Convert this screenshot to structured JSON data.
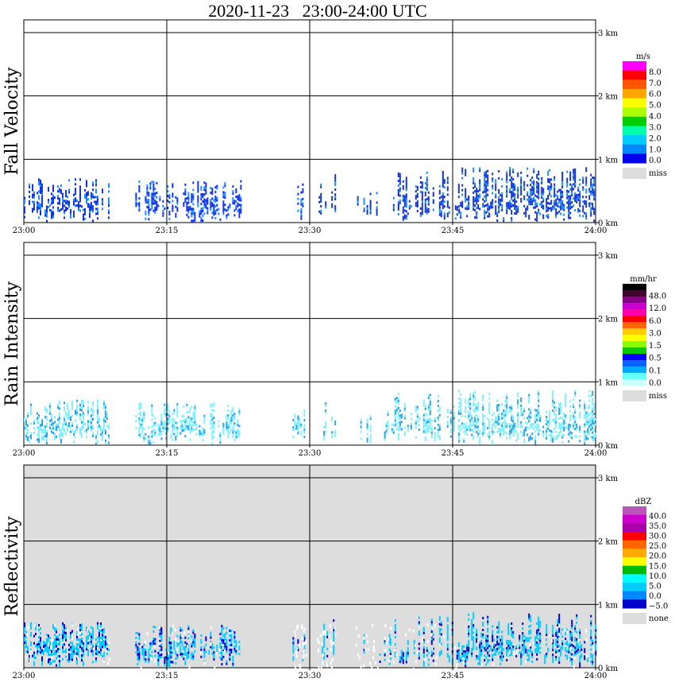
{
  "title": "2020-11-23   23:00-24:00 UTC",
  "x_tick_labels": [
    "23:00",
    "23:15",
    "23:30",
    "23:45",
    "24:00"
  ],
  "height_labels": [
    "3 km",
    "2 km",
    "1 km",
    "0 km"
  ],
  "chart_data": [
    {
      "type": "heatmap",
      "ylabel": "Fall Velocity",
      "xlim": [
        "23:00",
        "24:00"
      ],
      "ylim": [
        0,
        3.2
      ],
      "y_unit": "km",
      "missing_color": "#ffffff",
      "colorbar": {
        "unit": "m/s",
        "labels": [
          "8.0",
          "7.0",
          "6.0",
          "5.0",
          "4.0",
          "3.0",
          "2.0",
          "1.0",
          "0.0"
        ],
        "colors": [
          "#ff00ff",
          "#ff0000",
          "#ff5500",
          "#ffa500",
          "#ffff00",
          "#aaff00",
          "#00cc00",
          "#00ffaa",
          "#00ccff",
          "#0088ff",
          "#0000ee"
        ],
        "missing_label": "miss",
        "missing_swatch": "#dddddd"
      },
      "echo_base_color": "#1030e0",
      "echo_accent_color": "#1a8cff"
    },
    {
      "type": "heatmap",
      "ylabel": "Rain Intensity",
      "xlim": [
        "23:00",
        "24:00"
      ],
      "ylim": [
        0,
        3.2
      ],
      "y_unit": "km",
      "missing_color": "#ffffff",
      "colorbar": {
        "unit": "mm/hr",
        "labels": [
          "48.0",
          "12.0",
          "6.0",
          "3.0",
          "1.5",
          "0.5",
          "0.1",
          "0.0"
        ],
        "colors": [
          "#000000",
          "#440033",
          "#880088",
          "#cc00cc",
          "#ff00aa",
          "#ff0000",
          "#ff6600",
          "#ffcc00",
          "#ffff00",
          "#88ff00",
          "#00cc00",
          "#0000ff",
          "#0066ff",
          "#00aaff",
          "#66ffff",
          "#ccffff"
        ],
        "missing_label": "miss",
        "missing_swatch": "#dddddd"
      },
      "echo_base_color": "#7ff0ff",
      "echo_accent_color": "#2aa0e8"
    },
    {
      "type": "heatmap",
      "ylabel": "Reflectivity",
      "xlim": [
        "23:00",
        "24:00"
      ],
      "ylim": [
        0,
        3.2
      ],
      "y_unit": "km",
      "missing_color": "#dddddd",
      "colorbar": {
        "unit": "dBZ",
        "labels": [
          "40.0",
          "35.0",
          "30.0",
          "25.0",
          "20.0",
          "15.0",
          "10.0",
          "5.0",
          "0.0",
          "−5.0"
        ],
        "colors": [
          "#bb55bb",
          "#cc00cc",
          "#aa00aa",
          "#ff0000",
          "#ff6600",
          "#ffaa00",
          "#ffff00",
          "#00bb00",
          "#00ffff",
          "#00ccff",
          "#0088ff",
          "#0000cc"
        ],
        "missing_label": "none",
        "missing_swatch": "#dddddd"
      },
      "echo_base_color": "#00ccff",
      "echo_accent_color": "#0000cc"
    }
  ]
}
